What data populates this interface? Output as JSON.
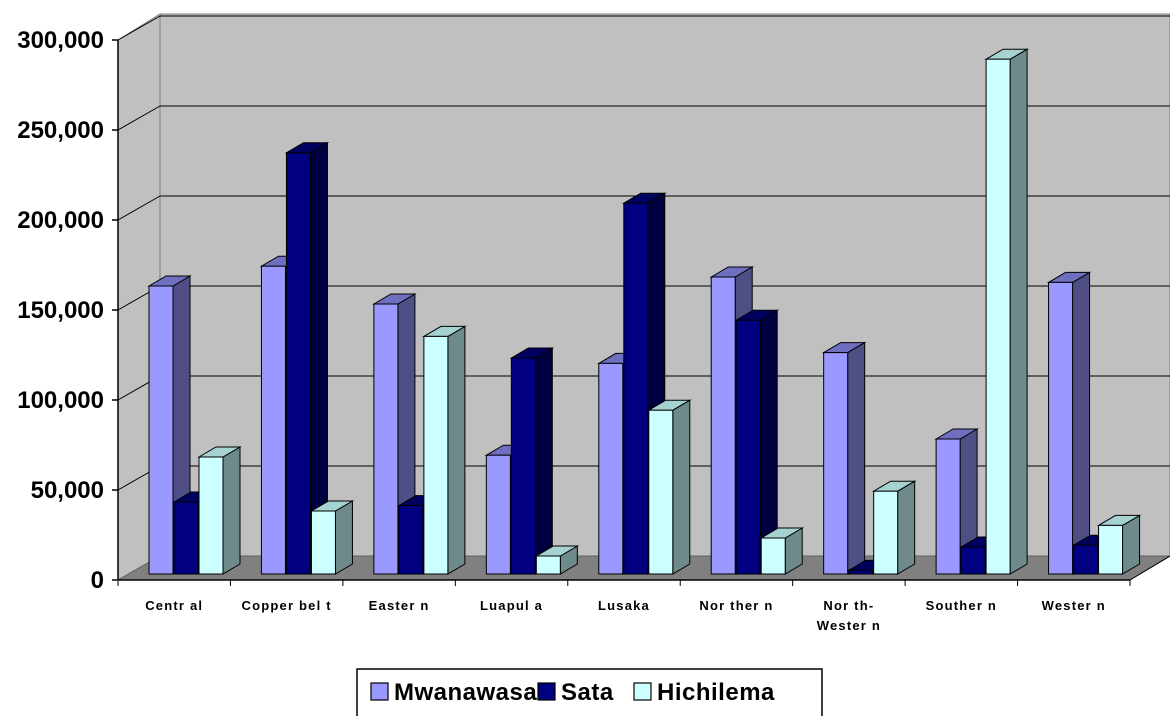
{
  "chart_data": {
    "type": "bar",
    "categories": [
      "Central",
      "Copperbelt",
      "Eastern",
      "Luapula",
      "Lusaka",
      "Northern",
      "North-Western",
      "Southern",
      "Western"
    ],
    "category_display": [
      [
        "Centr al"
      ],
      [
        "Copper bel t"
      ],
      [
        "Easter n"
      ],
      [
        "Luapul a"
      ],
      [
        "Lusaka"
      ],
      [
        "Nor ther n"
      ],
      [
        "Nor th-",
        "Wester n"
      ],
      [
        "Souther n"
      ],
      [
        "Wester n"
      ]
    ],
    "series": [
      {
        "name": "Mwanawasa",
        "values": [
          160000,
          171000,
          150000,
          66000,
          117000,
          165000,
          123000,
          75000,
          162000
        ],
        "color": "#9999ff",
        "side_color": "#4f4f85",
        "top_color": "#6f6fbf"
      },
      {
        "name": "Sata",
        "values": [
          40000,
          234000,
          38000,
          120000,
          206000,
          141000,
          2000,
          15000,
          16000
        ],
        "color": "#000080",
        "side_color": "#000040",
        "top_color": "#000060"
      },
      {
        "name": "Hichilema",
        "values": [
          65000,
          35000,
          132000,
          10000,
          91000,
          20000,
          46000,
          286000,
          27000
        ],
        "color": "#ccffff",
        "side_color": "#6e8a8a",
        "top_color": "#a6d2d2"
      }
    ],
    "yticks": [
      "0",
      "50,000",
      "100,000",
      "150,000",
      "200,000",
      "250,000",
      "300,000"
    ],
    "ylim": [
      0,
      300000
    ],
    "legend_position": "bottom",
    "grid": true,
    "wall_color": "#c0c0c0",
    "floor_color": "#808080"
  }
}
